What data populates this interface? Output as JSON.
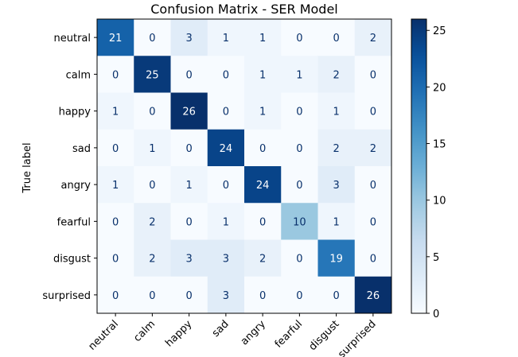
{
  "chart_data": {
    "type": "heatmap",
    "title": "Confusion Matrix - SER Model",
    "xlabel": "",
    "ylabel": "True label",
    "labels": [
      "neutral",
      "calm",
      "happy",
      "sad",
      "angry",
      "fearful",
      "disgust",
      "surprised"
    ],
    "matrix": [
      [
        21,
        0,
        3,
        1,
        1,
        0,
        0,
        2
      ],
      [
        0,
        25,
        0,
        0,
        1,
        1,
        2,
        0
      ],
      [
        1,
        0,
        26,
        0,
        1,
        0,
        1,
        0
      ],
      [
        0,
        1,
        0,
        24,
        0,
        0,
        2,
        2
      ],
      [
        1,
        0,
        1,
        0,
        24,
        0,
        3,
        0
      ],
      [
        0,
        2,
        0,
        1,
        0,
        10,
        1,
        0
      ],
      [
        0,
        2,
        3,
        3,
        2,
        0,
        19,
        0
      ],
      [
        0,
        0,
        0,
        3,
        0,
        0,
        0,
        26
      ]
    ],
    "colormap": "Blues",
    "vmin": 0,
    "vmax": 26,
    "colorbar_ticks": [
      0,
      5,
      10,
      15,
      20,
      25
    ],
    "colors": {
      "light_text": "#ffffff",
      "dark_text": "#08306b"
    }
  }
}
